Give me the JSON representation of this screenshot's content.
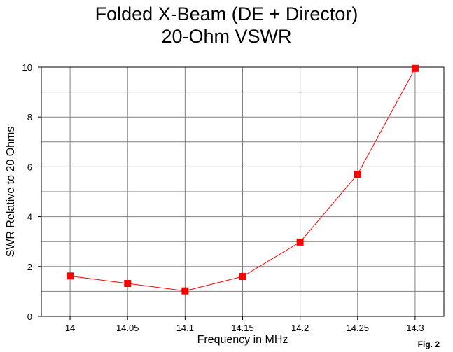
{
  "chart_data": {
    "type": "line",
    "title": "Folded X-Beam (DE + Director)",
    "subtitle": "20-Ohm VSWR",
    "xlabel": "Frequency in MHz",
    "ylabel": "SWR Relative to 20 Ohms",
    "x_ticks": [
      "14",
      "14.05",
      "14.1",
      "14.15",
      "14.2",
      "14.25",
      "14.3"
    ],
    "y_ticks": [
      "0",
      "2",
      "4",
      "6",
      "8",
      "10"
    ],
    "xlim": [
      13.975,
      14.325
    ],
    "ylim": [
      0,
      10
    ],
    "grid": true,
    "series": [
      {
        "x": [
          14.0,
          14.05,
          14.1,
          14.15,
          14.2,
          14.25,
          14.3
        ],
        "y": [
          1.62,
          1.32,
          1.02,
          1.6,
          2.98,
          5.7,
          9.95
        ],
        "color": "#ff0000",
        "marker": "square"
      }
    ],
    "annotation": "Fig. 2"
  }
}
